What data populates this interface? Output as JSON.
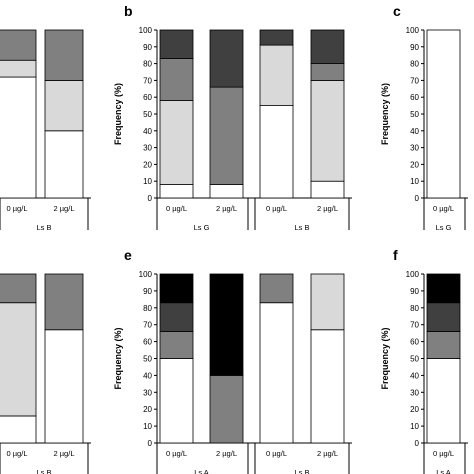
{
  "colors": {
    "white": "#ffffff",
    "light_gray": "#d9d9d9",
    "mid_gray": "#808080",
    "dark_gray": "#404040",
    "black": "#000000"
  },
  "chart_data": [
    {
      "panel": "",
      "type": "bar",
      "stacked": true,
      "ylabel": "",
      "ylim": [
        0,
        100
      ],
      "bars": [
        {
          "label": "0 µg/L",
          "segments": [
            72,
            10,
            18
          ]
        },
        {
          "label": "2 µg/L",
          "segments": [
            40,
            30,
            30
          ]
        }
      ],
      "segment_colors": [
        "white",
        "light_gray",
        "mid_gray"
      ],
      "groups": [
        {
          "label": "Ls B",
          "bar_indices": [
            0,
            1
          ]
        }
      ]
    },
    {
      "panel": "b",
      "type": "bar",
      "stacked": true,
      "ylabel": "Frequency (%)",
      "ylim": [
        0,
        100
      ],
      "yticks": [
        0,
        10,
        20,
        30,
        40,
        50,
        60,
        70,
        80,
        90,
        100
      ],
      "bars": [
        {
          "label": "0 µg/L",
          "segments": [
            8,
            50,
            25,
            17
          ]
        },
        {
          "label": "2 µg/L",
          "segments": [
            8,
            0,
            58,
            34
          ]
        },
        {
          "label": "0 µg/L",
          "segments": [
            55,
            36,
            0,
            9
          ]
        },
        {
          "label": "2 µg/L",
          "segments": [
            10,
            60,
            10,
            20
          ]
        }
      ],
      "segment_colors": [
        "white",
        "light_gray",
        "mid_gray",
        "dark_gray"
      ],
      "groups": [
        {
          "label": "Ls G",
          "bar_indices": [
            0,
            1
          ]
        },
        {
          "label": "Ls B",
          "bar_indices": [
            2,
            3
          ]
        }
      ]
    },
    {
      "panel": "c",
      "type": "bar",
      "stacked": true,
      "ylabel": "Frequency (%)",
      "ylim": [
        0,
        100
      ],
      "yticks": [
        0,
        10,
        20,
        30,
        40,
        50,
        60,
        70,
        80,
        90,
        100
      ],
      "bars": [
        {
          "label": "0 µg/L",
          "segments": [
            100
          ]
        }
      ],
      "segment_colors": [
        "white"
      ],
      "groups": [
        {
          "label": "Ls G",
          "bar_indices": [
            0
          ]
        }
      ]
    },
    {
      "panel": "",
      "type": "bar",
      "stacked": true,
      "ylabel": "",
      "ylim": [
        0,
        100
      ],
      "bars": [
        {
          "label": "0 µg/L",
          "segments": [
            16,
            67,
            17
          ]
        },
        {
          "label": "2 µg/L",
          "segments": [
            67,
            0,
            33
          ]
        }
      ],
      "segment_colors": [
        "white",
        "light_gray",
        "mid_gray"
      ],
      "groups": [
        {
          "label": "Ls B",
          "bar_indices": [
            0,
            1
          ]
        }
      ]
    },
    {
      "panel": "e",
      "type": "bar",
      "stacked": true,
      "ylabel": "Frequency (%)",
      "ylim": [
        0,
        100
      ],
      "yticks": [
        0,
        10,
        20,
        30,
        40,
        50,
        60,
        70,
        80,
        90,
        100
      ],
      "bars": [
        {
          "label": "0 µg/L",
          "segments": [
            50,
            0,
            16,
            17,
            17
          ]
        },
        {
          "label": "2 µg/L",
          "segments": [
            0,
            0,
            40,
            0,
            60
          ]
        },
        {
          "label": "0 µg/L",
          "segments": [
            83,
            0,
            17,
            0,
            0
          ]
        },
        {
          "label": "2 µg/L",
          "segments": [
            67,
            33,
            0,
            0,
            0
          ]
        }
      ],
      "segment_colors": [
        "white",
        "light_gray",
        "mid_gray",
        "dark_gray",
        "black"
      ],
      "groups": [
        {
          "label": "Ls A",
          "bar_indices": [
            0,
            1
          ]
        },
        {
          "label": "Ls B",
          "bar_indices": [
            2,
            3
          ]
        }
      ]
    },
    {
      "panel": "f",
      "type": "bar",
      "stacked": true,
      "ylabel": "Frequency (%)",
      "ylim": [
        0,
        100
      ],
      "yticks": [
        0,
        10,
        20,
        30,
        40,
        50,
        60,
        70,
        80,
        90,
        100
      ],
      "bars": [
        {
          "label": "0 µg/L",
          "segments": [
            50,
            0,
            16,
            17,
            17
          ]
        }
      ],
      "segment_colors": [
        "white",
        "light_gray",
        "mid_gray",
        "dark_gray",
        "black"
      ],
      "groups": [
        {
          "label": "Ls A",
          "bar_indices": [
            0
          ]
        }
      ]
    }
  ]
}
